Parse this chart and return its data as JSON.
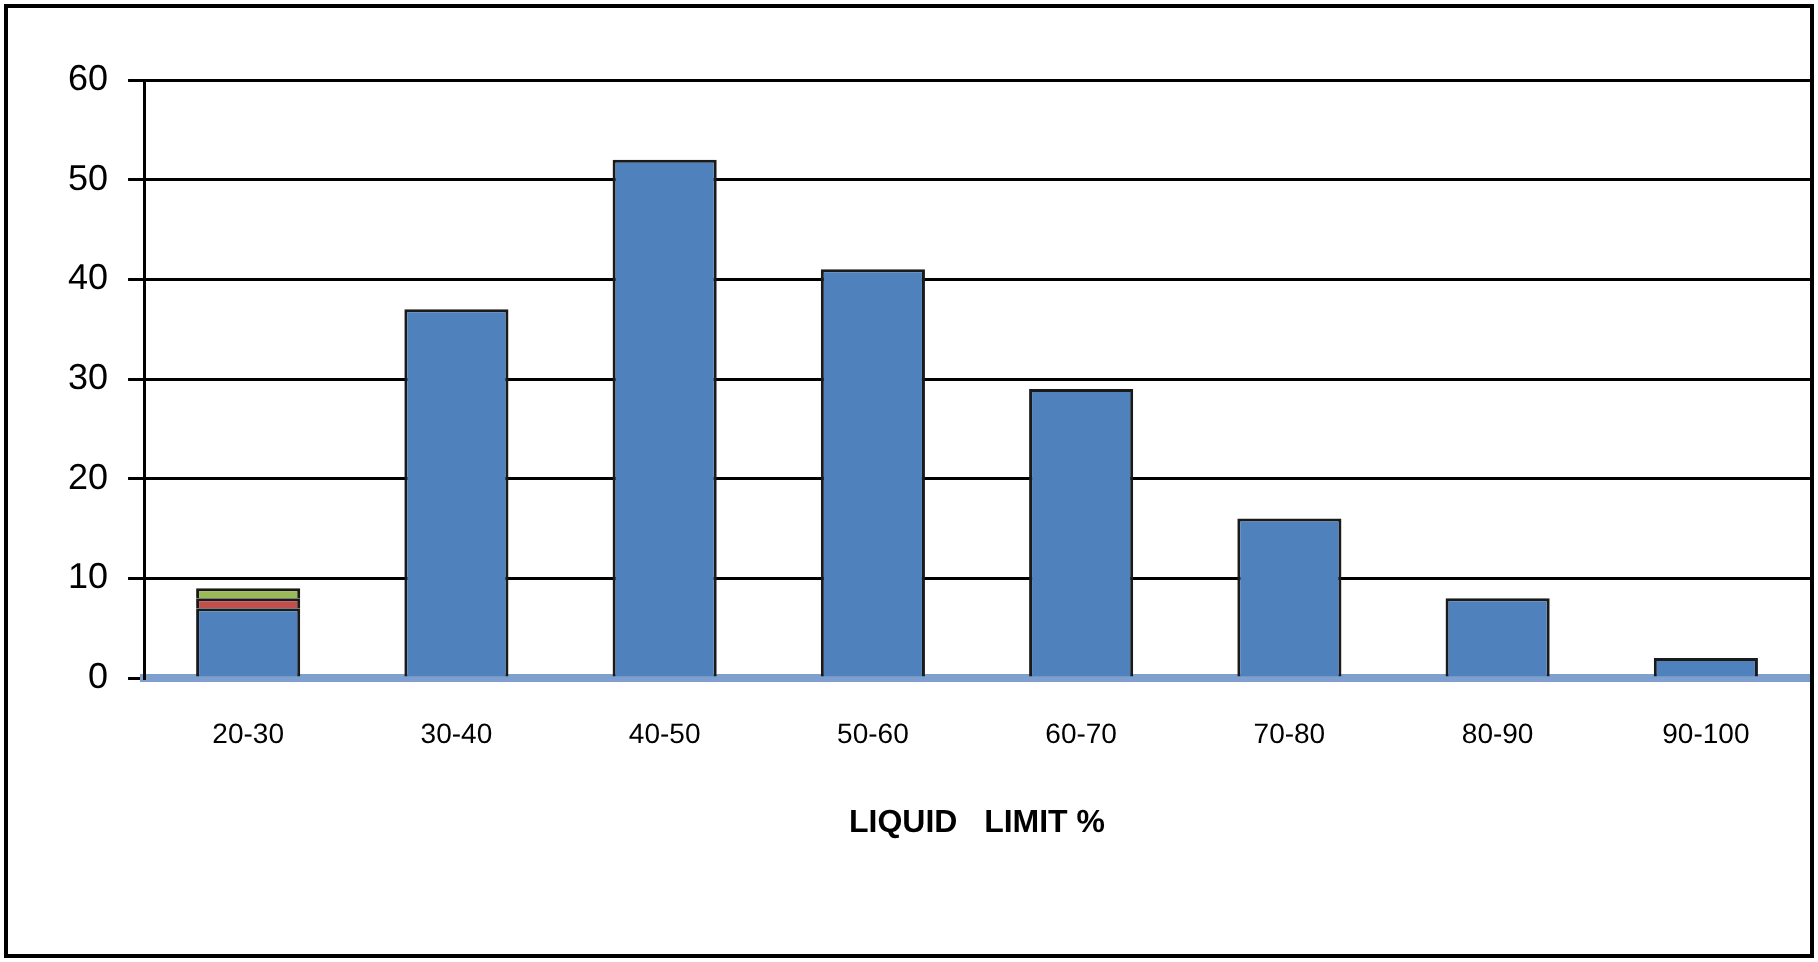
{
  "chart_data": {
    "type": "bar",
    "stacked": true,
    "xlabel": "LIQUID   LIMIT %",
    "categories": [
      "20-30",
      "30-40",
      "40-50",
      "50-60",
      "60-70",
      "70-80",
      "80-90",
      "90-100"
    ],
    "series": [
      {
        "color": "#4f81bd",
        "values": [
          7,
          37,
          52,
          41,
          29,
          16,
          8,
          2
        ]
      },
      {
        "color": "#c0504d",
        "values": [
          1,
          null,
          null,
          null,
          null,
          null,
          null,
          null
        ]
      },
      {
        "color": "#9bbb59",
        "values": [
          1,
          null,
          null,
          null,
          null,
          null,
          null,
          null
        ]
      }
    ],
    "ylim": [
      0,
      60
    ],
    "yticks": [
      0,
      10,
      20,
      30,
      40,
      50,
      60
    ],
    "grid": "y",
    "legend": false
  }
}
